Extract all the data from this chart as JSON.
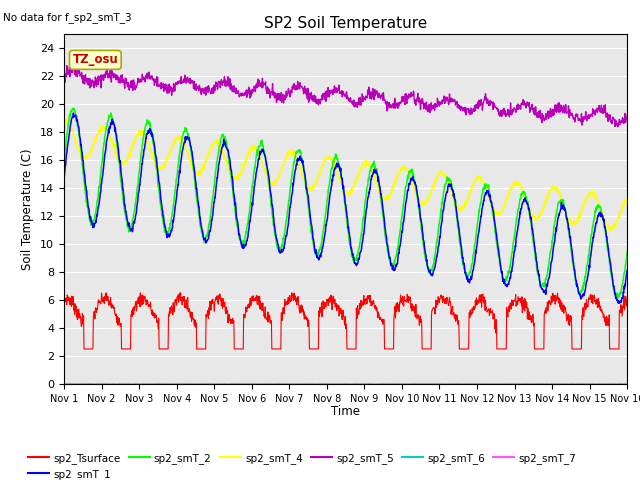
{
  "title": "SP2 Soil Temperature",
  "ylabel": "Soil Temperature (C)",
  "xlabel": "Time",
  "note": "No data for f_sp2_smT_3",
  "tz_label": "TZ_osu",
  "ylim": [
    0,
    25
  ],
  "yticks": [
    0,
    2,
    4,
    6,
    8,
    10,
    12,
    14,
    16,
    18,
    20,
    22,
    24
  ],
  "xtick_labels": [
    "Nov 1",
    "Nov 2",
    "Nov 3",
    "Nov 4",
    "Nov 5",
    "Nov 6",
    "Nov 7",
    "Nov 8",
    "Nov 9",
    "Nov 10",
    "Nov 11",
    "Nov 12",
    "Nov 13",
    "Nov 14",
    "Nov 15",
    "Nov 16"
  ],
  "bg_color": "#e8e8e8",
  "series_colors": {
    "sp2_Tsurface": "#ff0000",
    "sp2_smT_1": "#0000ff",
    "sp2_smT_2": "#00ff00",
    "sp2_smT_4": "#ffff00",
    "sp2_smT_5": "#bb00bb",
    "sp2_smT_6": "#00cccc",
    "sp2_smT_7": "#ff55ff"
  },
  "n_days": 15,
  "pts_per_day": 96
}
